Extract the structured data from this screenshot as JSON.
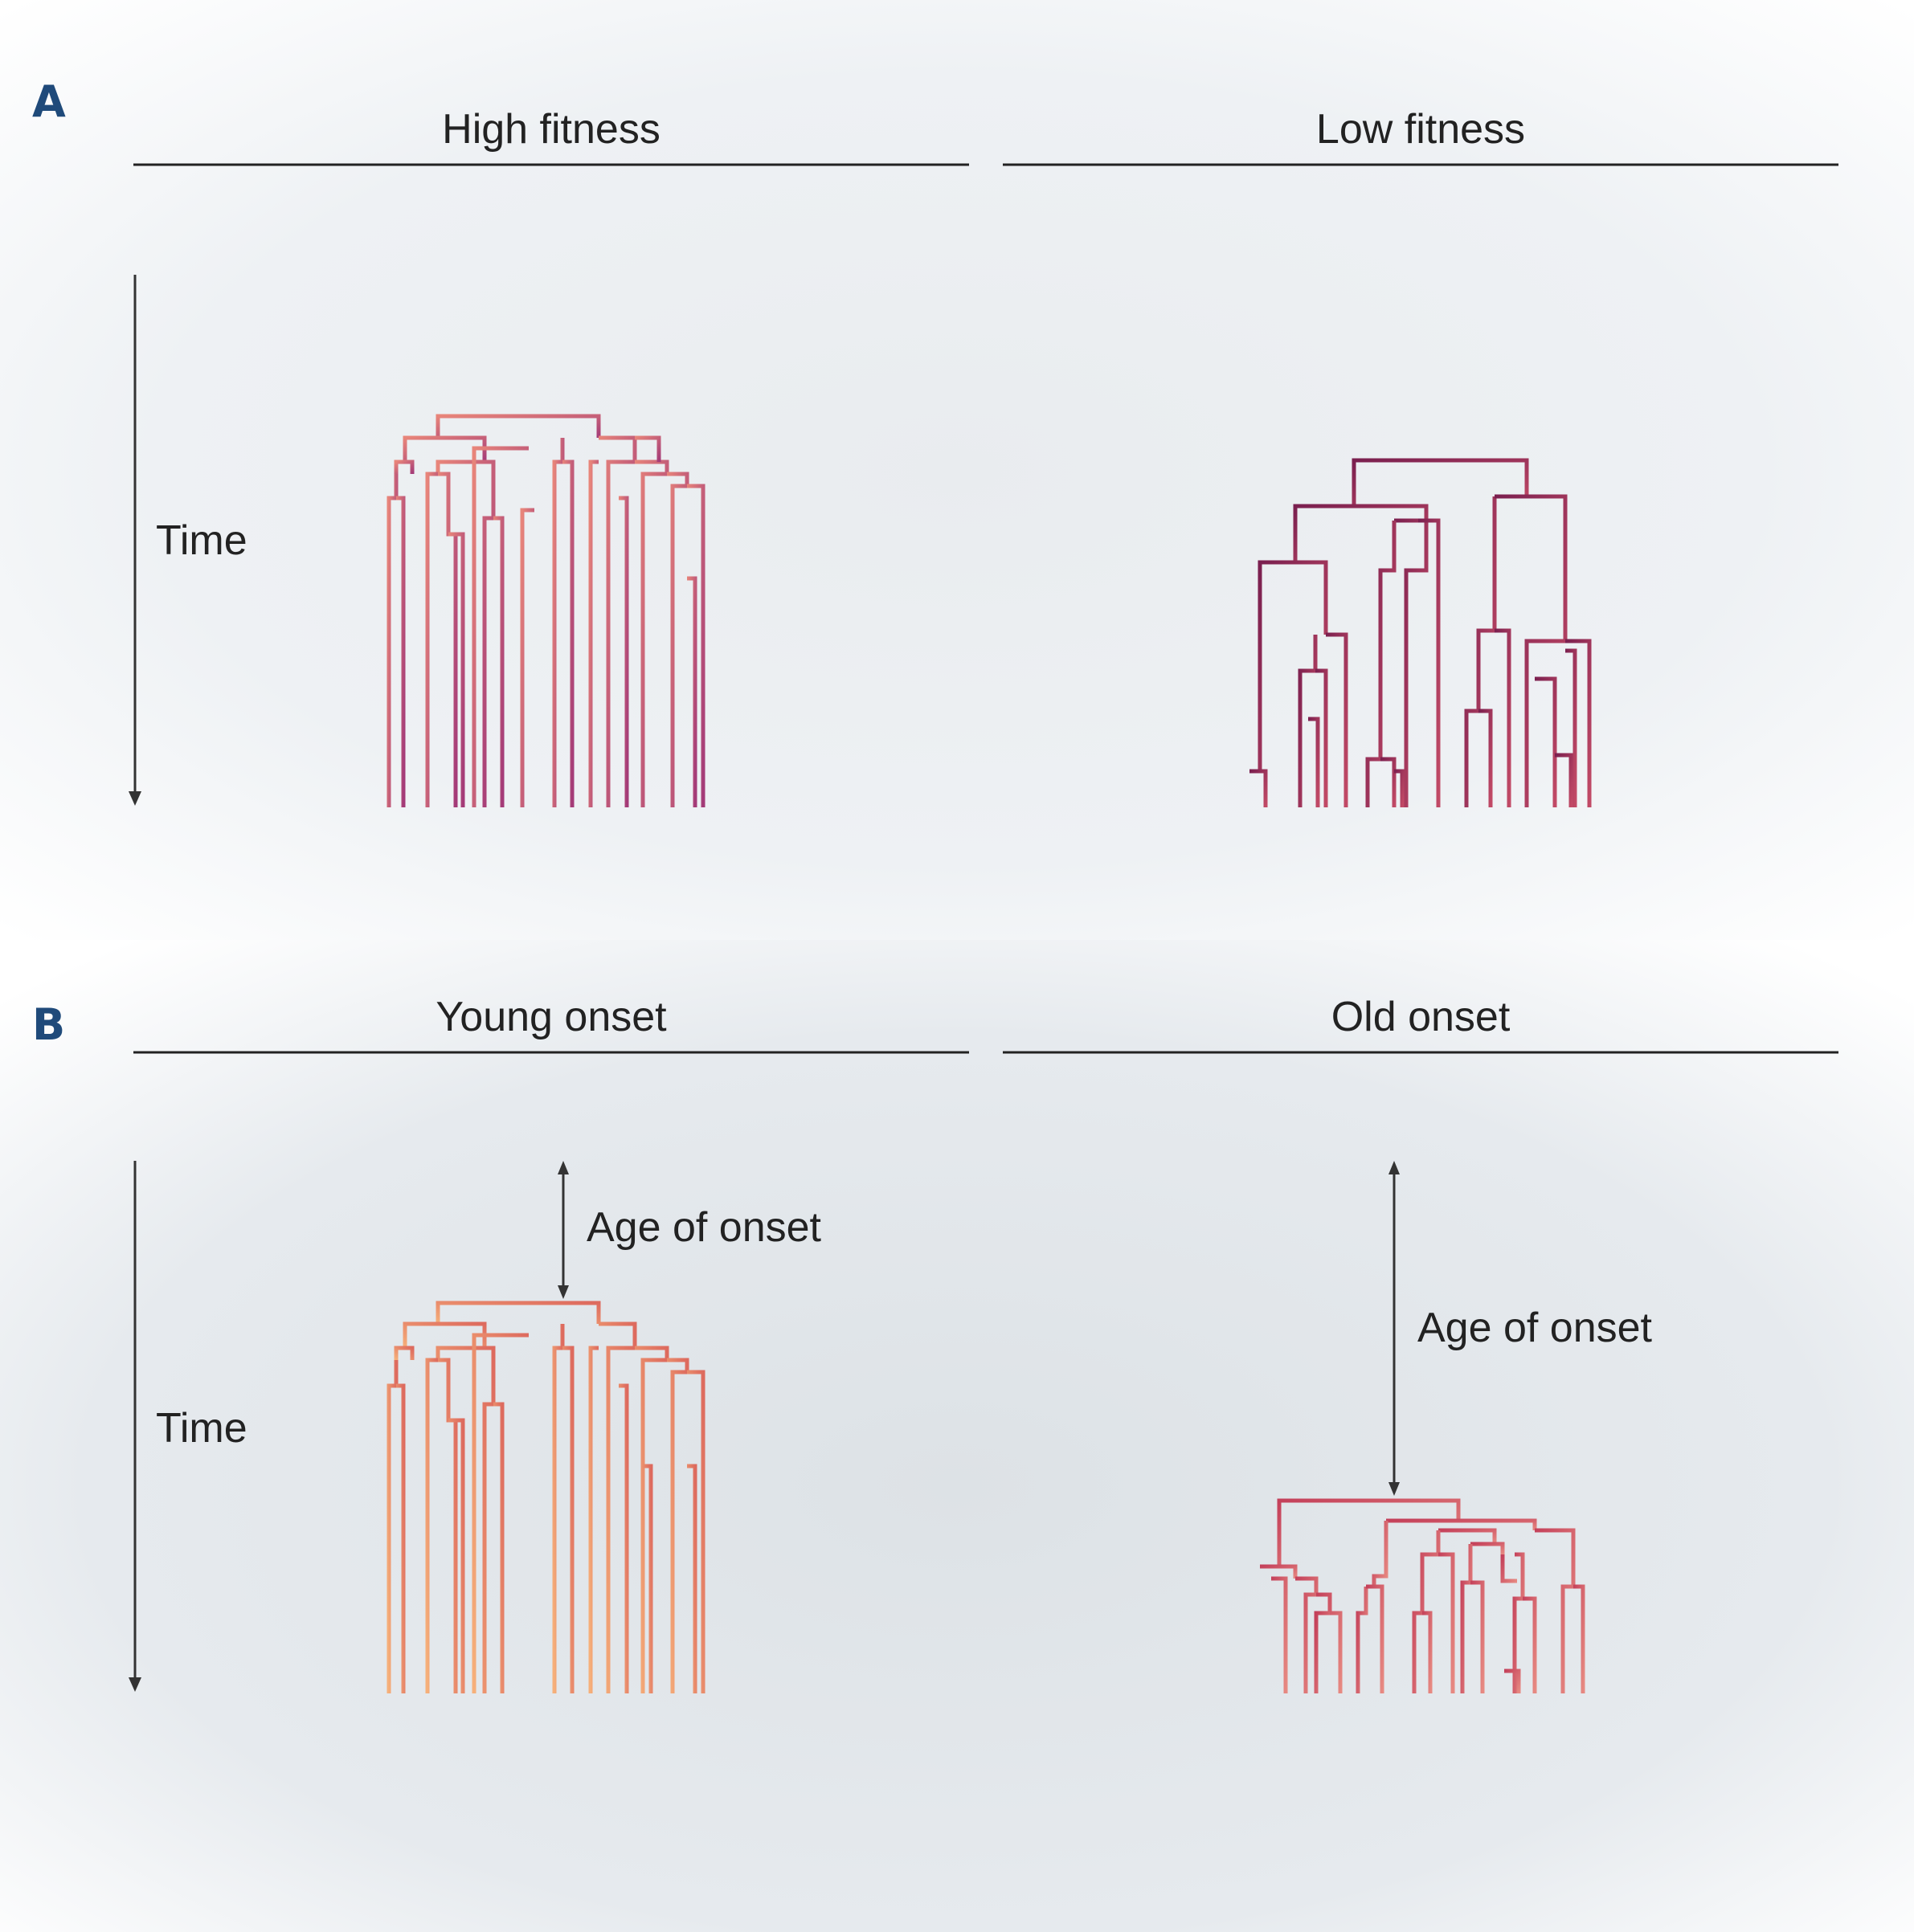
{
  "panels": [
    {
      "letter": "A",
      "left_title": "High fitness",
      "right_title": "Low fitness",
      "axis_label": "Time"
    },
    {
      "letter": "B",
      "left_title": "Young onset",
      "right_title": "Old onset",
      "axis_label": "Time",
      "annotation": "Age of onset"
    }
  ],
  "colors": {
    "letter": "#1f4a7a",
    "text": "#222222",
    "high_fitness": [
      "#e8857a",
      "#a33a78"
    ],
    "low_fitness": [
      "#7a1f4f",
      "#c24a66"
    ],
    "young_onset": [
      "#f6b07a",
      "#dd6a5e"
    ],
    "old_onset": [
      "#c4405a",
      "#e78a82"
    ]
  }
}
